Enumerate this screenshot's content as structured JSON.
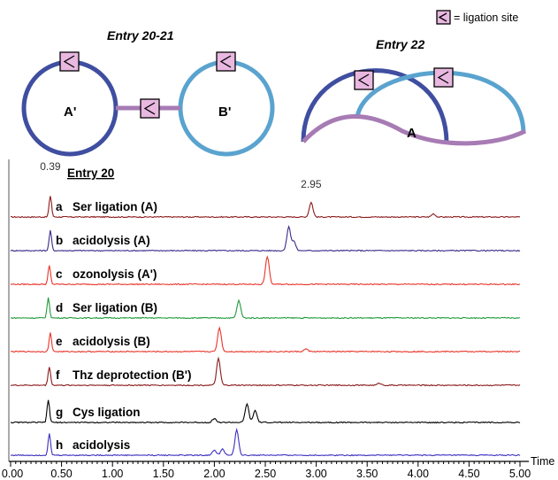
{
  "legend": {
    "text": "= ligation site",
    "marker_color": "#e8b8e0"
  },
  "schematic": {
    "entry_left": "Entry 20-21",
    "entry_right": "Entry 22",
    "ring_a_label": "A'",
    "ring_b_label": "B'",
    "arc_label": "A",
    "colors": {
      "dark_blue": "#3f4ea0",
      "light_blue": "#5aa3cf",
      "purple": "#a77bb4"
    }
  },
  "chart_data": {
    "type": "line",
    "title": "Entry 20",
    "xlabel": "Time",
    "xlim": [
      0.0,
      5.0
    ],
    "x_ticks": [
      "0.00",
      "0.50",
      "1.00",
      "1.50",
      "2.00",
      "2.50",
      "3.00",
      "3.50",
      "4.00",
      "4.50",
      "5.00"
    ],
    "peak_annotations": [
      {
        "label": "0.39",
        "x": 0.39
      },
      {
        "label": "2.95",
        "x": 2.95
      }
    ],
    "series": [
      {
        "letter": "a",
        "name": "Ser ligation (A)",
        "color": "#8b1a1a",
        "peaks": [
          [
            0.39,
            0.8
          ],
          [
            2.95,
            0.55
          ],
          [
            4.15,
            0.12
          ]
        ]
      },
      {
        "letter": "b",
        "name": "acidolysis (A)",
        "color": "#3b2a8a",
        "peaks": [
          [
            0.39,
            0.75
          ],
          [
            2.73,
            0.9
          ],
          [
            2.78,
            0.35
          ]
        ]
      },
      {
        "letter": "c",
        "name": "ozonolysis (A')",
        "color": "#e8352a",
        "peaks": [
          [
            0.38,
            0.7
          ],
          [
            2.52,
            1.05
          ]
        ]
      },
      {
        "letter": "d",
        "name": "Ser ligation (B)",
        "color": "#1f9a3a",
        "peaks": [
          [
            0.37,
            0.75
          ],
          [
            2.24,
            0.65
          ]
        ]
      },
      {
        "letter": "e",
        "name": "acidolysis (B)",
        "color": "#e8352a",
        "peaks": [
          [
            0.39,
            0.7
          ],
          [
            2.05,
            0.9
          ],
          [
            2.9,
            0.1
          ]
        ]
      },
      {
        "letter": "f",
        "name": "Thz deprotection (B')",
        "color": "#8b1a1a",
        "peaks": [
          [
            0.38,
            0.7
          ],
          [
            2.04,
            1.0
          ],
          [
            3.62,
            0.08
          ]
        ]
      },
      {
        "letter": "g",
        "name": "Cys ligation",
        "color": "#000000",
        "peaks": [
          [
            0.37,
            0.85
          ],
          [
            2.0,
            0.15
          ],
          [
            2.32,
            0.7
          ],
          [
            2.4,
            0.45
          ]
        ]
      },
      {
        "letter": "h",
        "name": "acidolysis",
        "color": "#3b2fc0",
        "peaks": [
          [
            0.38,
            0.8
          ],
          [
            2.22,
            0.95
          ],
          [
            2.0,
            0.2
          ],
          [
            2.08,
            0.25
          ]
        ]
      }
    ]
  }
}
